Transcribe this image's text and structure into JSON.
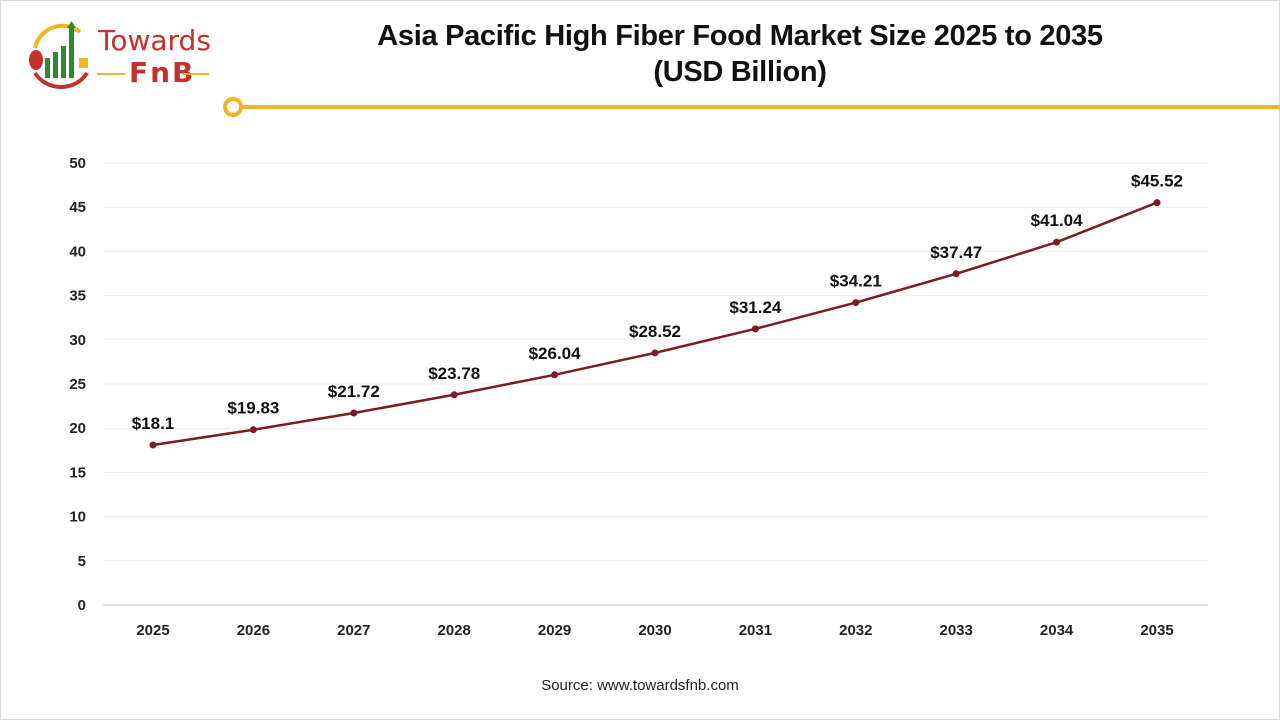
{
  "header": {
    "logo_text": "Towards FnB",
    "title_line1": "Asia Pacific High Fiber Food Market Size 2025 to 2035",
    "title_line2": "(USD Billion)"
  },
  "footer": {
    "source": "Source: www.towardsfnb.com"
  },
  "colors": {
    "line": "#7b1c24",
    "accent": "#f2b51f",
    "logo_red": "#c4302b",
    "logo_green": "#2d8a2f"
  },
  "chart_data": {
    "type": "line",
    "title": "Asia Pacific High Fiber Food Market Size 2025 to 2035 (USD Billion)",
    "categories": [
      "2025",
      "2026",
      "2027",
      "2028",
      "2029",
      "2030",
      "2031",
      "2032",
      "2033",
      "2034",
      "2035"
    ],
    "values": [
      18.1,
      19.83,
      21.72,
      23.78,
      26.04,
      28.52,
      31.24,
      34.21,
      37.47,
      41.04,
      45.52
    ],
    "data_labels": [
      "$18.1",
      "$19.83",
      "$21.72",
      "$23.78",
      "$26.04",
      "$28.52",
      "$31.24",
      "$34.21",
      "$37.47",
      "$41.04",
      "$45.52"
    ],
    "ylim": [
      0,
      50
    ],
    "yticks": [
      0,
      5,
      10,
      15,
      20,
      25,
      30,
      35,
      40,
      45,
      50
    ],
    "grid": true,
    "legend": "none"
  }
}
